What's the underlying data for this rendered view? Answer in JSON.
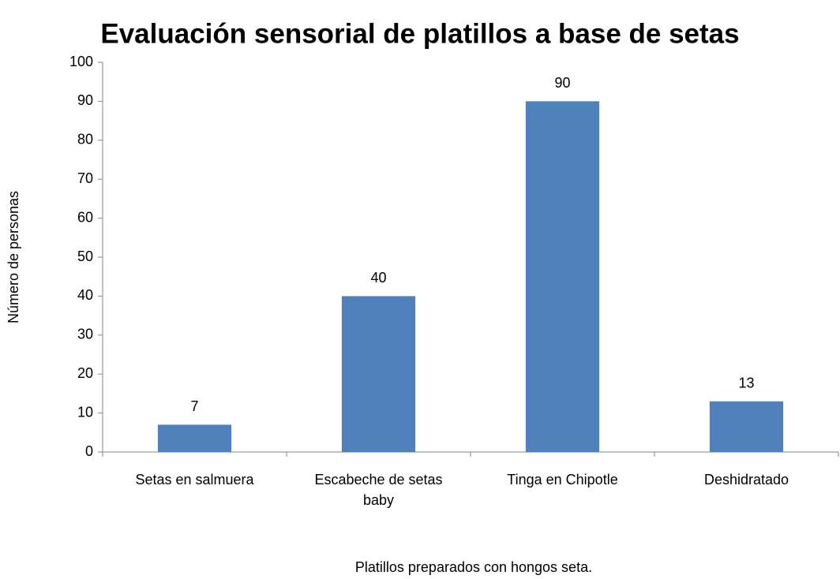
{
  "chart_data": {
    "type": "bar",
    "title": "Evaluación sensorial de platillos a base de setas",
    "x_label": "Platillos preparados con hongos seta.",
    "y_label": "Número de personas",
    "categories": [
      "Setas en salmuera",
      "Escabeche de setas baby",
      "Tinga en Chipotle",
      "Deshidratado"
    ],
    "values": [
      7,
      40,
      90,
      13
    ],
    "color": "#4f81bd",
    "ylim": [
      0,
      100
    ],
    "yticks": [
      0,
      10,
      20,
      30,
      40,
      50,
      60,
      70,
      80,
      90,
      100
    ],
    "grid": false
  }
}
